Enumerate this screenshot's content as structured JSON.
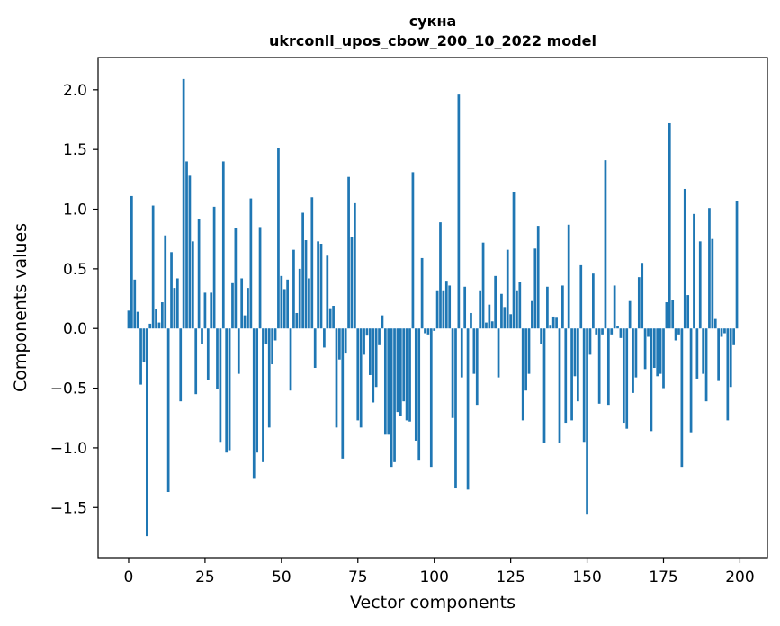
{
  "chart_data": {
    "type": "bar",
    "title": "сукна",
    "subtitle": "ukrconll_upos_cbow_200_10_2022 model",
    "xlabel": "Vector components",
    "ylabel": "Components values",
    "xlim": [
      -10,
      209
    ],
    "ylim": [
      -1.92,
      2.27
    ],
    "xticks": [
      0,
      25,
      50,
      75,
      100,
      125,
      150,
      175,
      200
    ],
    "yticks": [
      -1.5,
      -1.0,
      -0.5,
      0.0,
      0.5,
      1.0,
      1.5,
      2.0
    ],
    "ytick_labels": [
      "−1.5",
      "−1.0",
      "−0.5",
      "0.0",
      "0.5",
      "1.0",
      "1.5",
      "2.0"
    ],
    "grid": false,
    "bar_color": "#1f77b4",
    "x": [
      0,
      1,
      2,
      3,
      4,
      5,
      6,
      7,
      8,
      9,
      10,
      11,
      12,
      13,
      14,
      15,
      16,
      17,
      18,
      19,
      20,
      21,
      22,
      23,
      24,
      25,
      26,
      27,
      28,
      29,
      30,
      31,
      32,
      33,
      34,
      35,
      36,
      37,
      38,
      39,
      40,
      41,
      42,
      43,
      44,
      45,
      46,
      47,
      48,
      49,
      50,
      51,
      52,
      53,
      54,
      55,
      56,
      57,
      58,
      59,
      60,
      61,
      62,
      63,
      64,
      65,
      66,
      67,
      68,
      69,
      70,
      71,
      72,
      73,
      74,
      75,
      76,
      77,
      78,
      79,
      80,
      81,
      82,
      83,
      84,
      85,
      86,
      87,
      88,
      89,
      90,
      91,
      92,
      93,
      94,
      95,
      96,
      97,
      98,
      99,
      100,
      101,
      102,
      103,
      104,
      105,
      106,
      107,
      108,
      109,
      110,
      111,
      112,
      113,
      114,
      115,
      116,
      117,
      118,
      119,
      120,
      121,
      122,
      123,
      124,
      125,
      126,
      127,
      128,
      129,
      130,
      131,
      132,
      133,
      134,
      135,
      136,
      137,
      138,
      139,
      140,
      141,
      142,
      143,
      144,
      145,
      146,
      147,
      148,
      149,
      150,
      151,
      152,
      153,
      154,
      155,
      156,
      157,
      158,
      159,
      160,
      161,
      162,
      163,
      164,
      165,
      166,
      167,
      168,
      169,
      170,
      171,
      172,
      173,
      174,
      175,
      176,
      177,
      178,
      179,
      180,
      181,
      182,
      183,
      184,
      185,
      186,
      187,
      188,
      189,
      190,
      191,
      192,
      193,
      194,
      195,
      196,
      197,
      198,
      199
    ],
    "values": [
      0.15,
      1.11,
      0.41,
      0.14,
      -0.47,
      -0.28,
      -1.74,
      0.04,
      1.03,
      0.16,
      0.05,
      0.22,
      0.78,
      -1.37,
      0.64,
      0.34,
      0.42,
      -0.61,
      2.09,
      1.4,
      1.28,
      0.73,
      -0.55,
      0.92,
      -0.13,
      0.3,
      -0.43,
      0.3,
      1.02,
      -0.51,
      -0.95,
      1.4,
      -1.04,
      -1.02,
      0.38,
      0.84,
      -0.38,
      0.42,
      0.11,
      0.34,
      1.09,
      -1.26,
      -1.04,
      0.85,
      -1.12,
      -0.13,
      -0.83,
      -0.3,
      -0.1,
      1.51,
      0.44,
      0.33,
      0.41,
      -0.52,
      0.66,
      0.13,
      0.5,
      0.97,
      0.74,
      0.42,
      1.1,
      -0.33,
      0.73,
      0.71,
      -0.16,
      0.61,
      0.17,
      0.19,
      -0.83,
      -0.26,
      -1.09,
      -0.21,
      1.27,
      0.77,
      1.05,
      -0.77,
      -0.83,
      -0.22,
      -0.06,
      -0.39,
      -0.62,
      -0.49,
      -0.14,
      0.11,
      -0.89,
      -0.89,
      -1.16,
      -1.12,
      -0.7,
      -0.73,
      -0.61,
      -0.77,
      -0.78,
      1.31,
      -0.94,
      -1.1,
      0.59,
      -0.04,
      -0.05,
      -1.16,
      -0.02,
      0.32,
      0.89,
      0.32,
      0.4,
      0.36,
      -0.75,
      -1.34,
      1.96,
      -0.41,
      0.35,
      -1.35,
      0.13,
      -0.38,
      -0.64,
      0.32,
      0.72,
      0.05,
      0.2,
      0.06,
      0.44,
      -0.41,
      0.29,
      0.18,
      0.66,
      0.12,
      1.14,
      0.32,
      0.39,
      -0.77,
      -0.52,
      -0.38,
      0.23,
      0.67,
      0.86,
      -0.13,
      -0.96,
      0.35,
      0.03,
      0.1,
      0.09,
      -0.96,
      0.36,
      -0.79,
      0.87,
      -0.77,
      -0.4,
      -0.61,
      0.53,
      -0.95,
      -1.56,
      -0.22,
      0.46,
      -0.05,
      -0.63,
      -0.05,
      1.41,
      -0.64,
      -0.05,
      0.36,
      0.02,
      -0.08,
      -0.79,
      -0.84,
      0.23,
      -0.54,
      -0.41,
      0.43,
      0.55,
      -0.34,
      -0.07,
      -0.86,
      -0.33,
      -0.4,
      -0.38,
      -0.5,
      0.22,
      1.72,
      0.24,
      -0.1,
      -0.05,
      -1.16,
      1.17,
      0.28,
      -0.87,
      0.96,
      -0.42,
      0.73,
      -0.38,
      -0.61,
      1.01,
      0.75,
      0.08,
      -0.44,
      -0.07,
      -0.04,
      -0.77,
      -0.49,
      -0.14,
      1.07
    ]
  }
}
